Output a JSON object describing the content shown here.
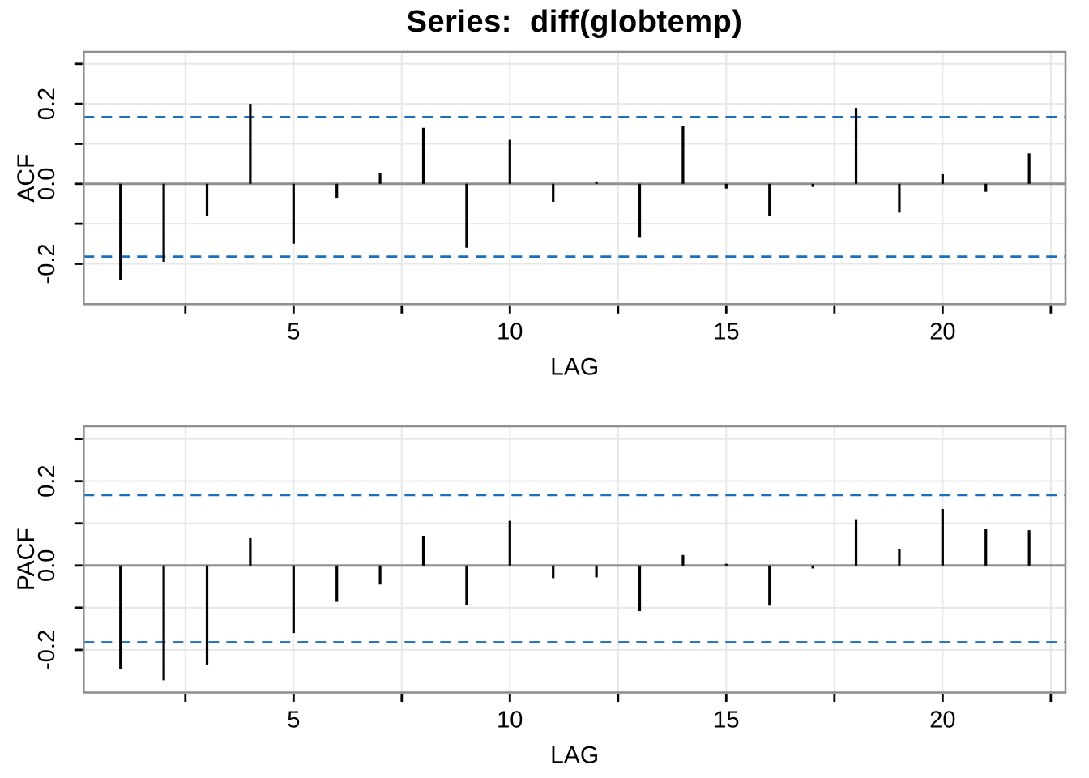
{
  "title": "Series:  diff(globtemp)",
  "colors": {
    "background": "#FFFFFF",
    "bar": "#000000",
    "confidence_line": "#1C6EBE",
    "gridline": "#E7E7E7",
    "frame": "#8F8F8F",
    "zero_line": "#8F8F8F",
    "tick": "#000000",
    "text": "#000000"
  },
  "axis": {
    "x_tick_labels": [
      {
        "value": 5,
        "label": "5"
      },
      {
        "value": 10,
        "label": "10"
      },
      {
        "value": 15,
        "label": "15"
      },
      {
        "value": 20,
        "label": "20"
      }
    ],
    "y_tick_labels": [
      {
        "value": 0.2,
        "label": "0.2"
      },
      {
        "value": 0.0,
        "label": "0.0"
      },
      {
        "value": -0.2,
        "label": "-0.2"
      }
    ]
  },
  "chart_data": [
    {
      "type": "bar",
      "series_name": "ACF",
      "title": "Series:  diff(globtemp)",
      "xlabel": "LAG",
      "ylabel": "ACF",
      "x": [
        1,
        2,
        3,
        4,
        5,
        6,
        7,
        8,
        9,
        10,
        11,
        12,
        13,
        14,
        15,
        16,
        17,
        18,
        19,
        20,
        21,
        22
      ],
      "values": [
        -0.24,
        -0.195,
        -0.08,
        0.2,
        -0.15,
        -0.035,
        0.028,
        0.14,
        -0.16,
        0.11,
        -0.045,
        0.006,
        -0.135,
        0.145,
        -0.012,
        -0.08,
        -0.008,
        0.19,
        -0.072,
        0.024,
        -0.02,
        0.076
      ],
      "conf_upper": 0.167,
      "conf_lower": -0.182,
      "conf_style": "dashed",
      "xlim": [
        0.15,
        22.84
      ],
      "ylim": [
        -0.301,
        0.33
      ],
      "x_major_ticks": [
        5,
        10,
        15,
        20
      ],
      "x_minor_ticks": [
        2.5,
        7.5,
        12.5,
        17.5,
        22.5
      ],
      "y_major_ticks": [
        0.2,
        0.0,
        -0.2
      ],
      "y_minor_ticks": [
        0.3,
        0.1,
        -0.1
      ],
      "grid": true,
      "legend": "none"
    },
    {
      "type": "bar",
      "series_name": "PACF",
      "title": "",
      "xlabel": "LAG",
      "ylabel": "PACF",
      "x": [
        1,
        2,
        3,
        4,
        5,
        6,
        7,
        8,
        9,
        10,
        11,
        12,
        13,
        14,
        15,
        16,
        17,
        18,
        19,
        20,
        21,
        22
      ],
      "values": [
        -0.245,
        -0.272,
        -0.235,
        0.065,
        -0.16,
        -0.086,
        -0.045,
        0.07,
        -0.094,
        0.106,
        -0.03,
        -0.028,
        -0.108,
        0.025,
        0.004,
        -0.095,
        -0.007,
        0.108,
        0.04,
        0.134,
        0.086,
        0.084
      ],
      "conf_upper": 0.167,
      "conf_lower": -0.182,
      "conf_style": "dashed",
      "xlim": [
        0.15,
        22.84
      ],
      "ylim": [
        -0.301,
        0.33
      ],
      "x_major_ticks": [
        5,
        10,
        15,
        20
      ],
      "x_minor_ticks": [
        2.5,
        7.5,
        12.5,
        17.5,
        22.5
      ],
      "y_major_ticks": [
        0.2,
        0.0,
        -0.2
      ],
      "y_minor_ticks": [
        0.3,
        0.1,
        -0.1
      ],
      "grid": true,
      "legend": "none"
    }
  ]
}
